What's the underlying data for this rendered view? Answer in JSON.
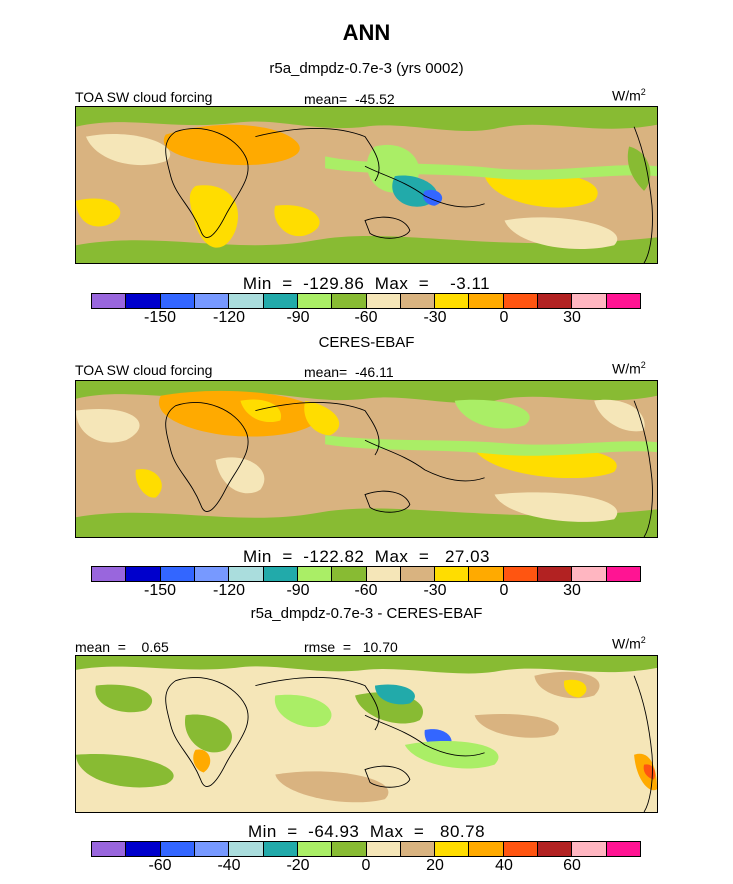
{
  "title": "ANN",
  "colorbar_colors": [
    "#9966dd",
    "#0000cc",
    "#3366ff",
    "#7799ff",
    "#aadddd",
    "#22aaaa",
    "#aaee66",
    "#88bb33",
    "#f5e6b8",
    "#d9b380",
    "#ffdd00",
    "#ffaa00",
    "#ff5511",
    "#b22222",
    "#ffb6c1",
    "#ff1493"
  ],
  "panels": [
    {
      "subtitle": "r5a_dmpdz-0.7e-3 (yrs 0002)",
      "left_label": "TOA SW cloud forcing",
      "center_label": "mean=  -45.52",
      "units": "W/m",
      "units_sup": "2",
      "minmax": "Min  =  -129.86  Max  =    -3.11",
      "ticks": [
        "-150",
        "-120",
        "-90",
        "-60",
        "-30",
        "0",
        "30"
      ]
    },
    {
      "subtitle": "CERES-EBAF",
      "left_label": "TOA SW cloud forcing",
      "center_label": "mean=  -46.11",
      "units": "W/m",
      "units_sup": "2",
      "minmax": "Min  =  -122.82  Max  =   27.03",
      "ticks": [
        "-150",
        "-120",
        "-90",
        "-60",
        "-30",
        "0",
        "30"
      ]
    },
    {
      "subtitle": "r5a_dmpdz-0.7e-3 - CERES-EBAF",
      "left_label": "mean  =    0.65",
      "center_label": "rmse  =   10.70",
      "units": "W/m",
      "units_sup": "2",
      "minmax": "Min  =  -64.93  Max  =   80.78",
      "ticks": [
        "-60",
        "-40",
        "-20",
        "0",
        "20",
        "40",
        "60"
      ]
    }
  ]
}
